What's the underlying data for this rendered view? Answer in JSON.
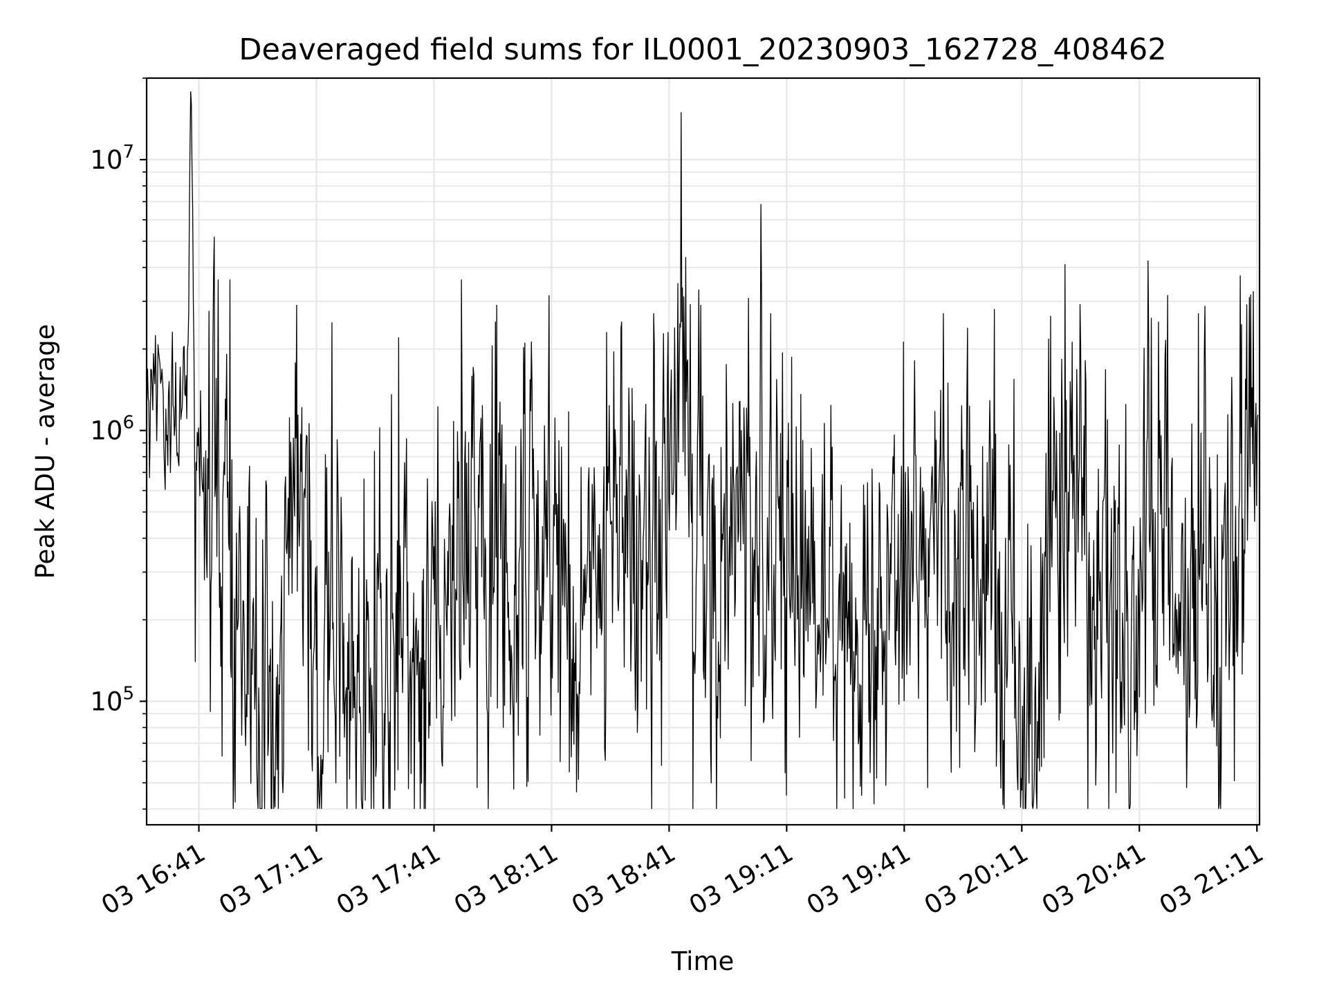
{
  "chart_data": {
    "type": "line",
    "title": "Deaveraged field sums for IL0001_20230903_162728_408462",
    "xlabel": "Time",
    "ylabel": "Peak ADU - average",
    "yscale": "log",
    "grid": true,
    "x_ticks": [
      "03 16:41",
      "03 17:11",
      "03 17:41",
      "03 18:11",
      "03 18:41",
      "03 19:11",
      "03 19:41",
      "03 20:11",
      "03 20:41",
      "03 21:11"
    ],
    "y_ticks": [
      {
        "base": "10",
        "exp": "5",
        "value": 100000
      },
      {
        "base": "10",
        "exp": "6",
        "value": 1000000
      },
      {
        "base": "10",
        "exp": "7",
        "value": 10000000
      }
    ],
    "xlim": [
      "2023-09-03 16:27:40",
      "2023-09-03 21:11:40"
    ],
    "ylim": [
      35000,
      20000000
    ],
    "series": [
      {
        "color": "#000000",
        "x_start": "2023-09-03 16:27:44",
        "x_end": "2023-09-03 21:11:15",
        "anchors": [
          [
            "16:28",
            1500000
          ],
          [
            "16:30",
            1700000
          ],
          [
            "16:33",
            1300000
          ],
          [
            "16:36",
            1150000
          ],
          [
            "16:38",
            1050000
          ],
          [
            "16:39",
            15000000
          ],
          [
            "16:40",
            1200000
          ],
          [
            "16:41",
            900000
          ],
          [
            "16:43",
            700000
          ],
          [
            "16:45",
            600000
          ],
          [
            "16:47",
            500000
          ],
          [
            "16:49",
            450000
          ],
          [
            "16:50",
            400000
          ],
          [
            "16:51",
            250000
          ],
          [
            "16:53",
            200000
          ],
          [
            "16:55",
            120000
          ],
          [
            "16:57",
            110000
          ],
          [
            "16:59",
            150000
          ],
          [
            "17:01",
            180000
          ],
          [
            "17:03",
            450000
          ],
          [
            "17:05",
            700000
          ],
          [
            "17:07",
            400000
          ],
          [
            "17:09",
            250000
          ],
          [
            "17:11",
            180000
          ],
          [
            "17:13",
            150000
          ],
          [
            "17:15",
            130000
          ],
          [
            "17:18",
            120000
          ],
          [
            "17:21",
            110000
          ],
          [
            "17:24",
            120000
          ],
          [
            "17:27",
            140000
          ],
          [
            "17:30",
            170000
          ],
          [
            "17:33",
            200000
          ],
          [
            "17:36",
            180000
          ],
          [
            "17:39",
            160000
          ],
          [
            "17:42",
            170000
          ],
          [
            "17:45",
            200000
          ],
          [
            "17:48",
            280000
          ],
          [
            "17:51",
            350000
          ],
          [
            "17:54",
            400000
          ],
          [
            "17:57",
            300000
          ],
          [
            "18:00",
            220000
          ],
          [
            "18:03",
            300000
          ],
          [
            "18:06",
            450000
          ],
          [
            "18:09",
            550000
          ],
          [
            "18:12",
            600000
          ],
          [
            "18:15",
            400000
          ],
          [
            "18:18",
            300000
          ],
          [
            "18:21",
            350000
          ],
          [
            "18:24",
            400000
          ],
          [
            "18:27",
            450000
          ],
          [
            "18:30",
            400000
          ],
          [
            "18:33",
            350000
          ],
          [
            "18:36",
            450000
          ],
          [
            "18:38",
            600000
          ],
          [
            "18:41",
            1100000
          ],
          [
            "18:44",
            1300000
          ],
          [
            "18:47",
            600000
          ],
          [
            "18:50",
            300000
          ],
          [
            "18:53",
            250000
          ],
          [
            "18:56",
            350000
          ],
          [
            "18:59",
            450000
          ],
          [
            "19:02",
            400000
          ],
          [
            "19:05",
            350000
          ],
          [
            "19:08",
            300000
          ],
          [
            "19:11",
            250000
          ],
          [
            "19:14",
            280000
          ],
          [
            "19:17",
            350000
          ],
          [
            "19:20",
            300000
          ],
          [
            "19:23",
            220000
          ],
          [
            "19:26",
            180000
          ],
          [
            "19:29",
            150000
          ],
          [
            "19:32",
            160000
          ],
          [
            "19:35",
            200000
          ],
          [
            "19:38",
            280000
          ],
          [
            "19:41",
            400000
          ],
          [
            "19:44",
            500000
          ],
          [
            "19:47",
            450000
          ],
          [
            "19:50",
            350000
          ],
          [
            "19:53",
            300000
          ],
          [
            "19:56",
            280000
          ],
          [
            "19:59",
            300000
          ],
          [
            "20:02",
            350000
          ],
          [
            "20:05",
            250000
          ],
          [
            "20:08",
            150000
          ],
          [
            "20:11",
            130000
          ],
          [
            "20:14",
            150000
          ],
          [
            "20:17",
            200000
          ],
          [
            "20:20",
            450000
          ],
          [
            "20:23",
            800000
          ],
          [
            "20:26",
            600000
          ],
          [
            "20:29",
            300000
          ],
          [
            "20:32",
            200000
          ],
          [
            "20:35",
            160000
          ],
          [
            "20:38",
            180000
          ],
          [
            "20:41",
            250000
          ],
          [
            "20:44",
            350000
          ],
          [
            "20:47",
            300000
          ],
          [
            "20:50",
            250000
          ],
          [
            "20:53",
            220000
          ],
          [
            "20:56",
            230000
          ],
          [
            "20:59",
            250000
          ],
          [
            "21:02",
            230000
          ],
          [
            "21:05",
            250000
          ],
          [
            "21:08",
            800000
          ],
          [
            "21:11",
            1000000
          ]
        ],
        "spikes_up": [
          [
            "16:46",
            3600000
          ],
          [
            "16:49",
            3600000
          ],
          [
            "17:06",
            2900000
          ],
          [
            "17:15",
            2500000
          ],
          [
            "17:32",
            2200000
          ],
          [
            "17:48",
            3600000
          ],
          [
            "17:57",
            2900000
          ],
          [
            "18:08",
            3600000
          ],
          [
            "18:25",
            2300000
          ],
          [
            "18:37",
            2700000
          ],
          [
            "18:49",
            2900000
          ],
          [
            "19:07",
            2700000
          ],
          [
            "19:34",
            3900000
          ],
          [
            "19:51",
            2700000
          ],
          [
            "20:04",
            2800000
          ],
          [
            "20:22",
            4100000
          ],
          [
            "20:35",
            2500000
          ],
          [
            "20:44",
            2600000
          ],
          [
            "20:56",
            2700000
          ],
          [
            "21:09",
            3100000
          ]
        ],
        "spikes_down": [
          [
            "16:40",
            140000
          ],
          [
            "16:52",
            75000
          ],
          [
            "16:56",
            45000
          ],
          [
            "17:01",
            56000
          ],
          [
            "17:16",
            50000
          ],
          [
            "17:31",
            47000
          ],
          [
            "17:43",
            60000
          ],
          [
            "17:52",
            48000
          ],
          [
            "18:08",
            75000
          ],
          [
            "18:39",
            58000
          ],
          [
            "19:11",
            45000
          ],
          [
            "19:34",
            52000
          ],
          [
            "19:47",
            48000
          ],
          [
            "20:11",
            47000
          ],
          [
            "20:35",
            46000
          ],
          [
            "20:53",
            48000
          ]
        ]
      }
    ]
  }
}
